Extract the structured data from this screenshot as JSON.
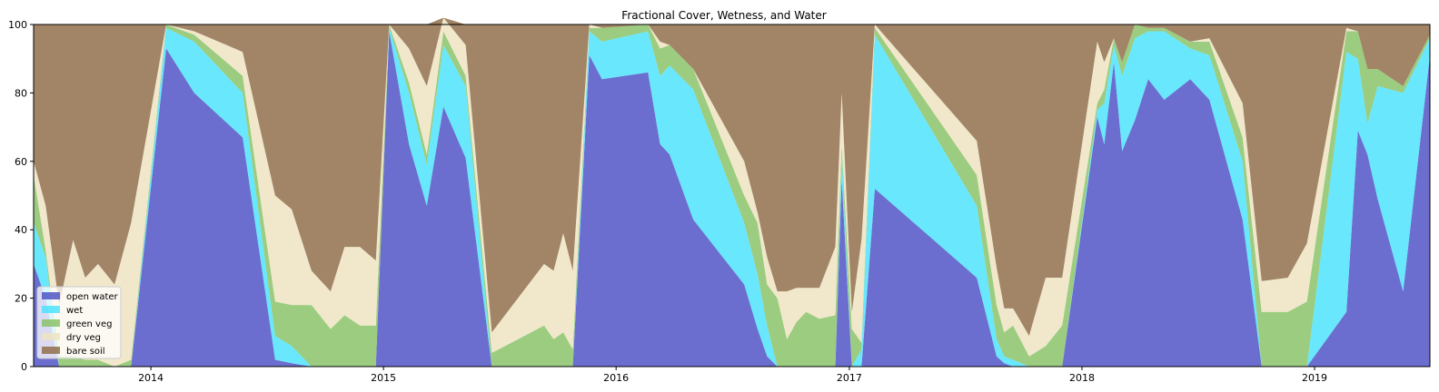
{
  "chart_data": {
    "type": "area",
    "stacked": true,
    "title": "Fractional Cover, Wetness, and Water",
    "xlabel": "",
    "ylabel": "",
    "xlim": [
      "2013-07-01",
      "2019-07-01"
    ],
    "ylim": [
      0,
      100
    ],
    "x_ticks": [
      "2014",
      "2015",
      "2016",
      "2017",
      "2018",
      "2019"
    ],
    "x_tick_dates": [
      "2014-01-01",
      "2015-01-01",
      "2016-01-01",
      "2017-01-01",
      "2018-01-01",
      "2019-01-01"
    ],
    "y_ticks": [
      0,
      20,
      40,
      60,
      80,
      100
    ],
    "grid": false,
    "legend_placement": "lower-left",
    "x": [
      "2013-07-01",
      "2013-07-20",
      "2013-08-10",
      "2013-09-01",
      "2013-09-20",
      "2013-10-10",
      "2013-11-05",
      "2013-12-01",
      "2014-01-25",
      "2014-03-10",
      "2014-05-25",
      "2014-07-15",
      "2014-08-10",
      "2014-09-10",
      "2014-10-10",
      "2014-11-01",
      "2014-11-25",
      "2014-12-20",
      "2015-01-10",
      "2015-02-10",
      "2015-03-10",
      "2015-04-05",
      "2015-05-10",
      "2015-06-20",
      "2015-09-10",
      "2015-09-25",
      "2015-10-10",
      "2015-10-25",
      "2015-11-20",
      "2015-12-10",
      "2016-02-20",
      "2016-03-10",
      "2016-03-25",
      "2016-05-01",
      "2016-07-20",
      "2016-08-10",
      "2016-08-25",
      "2016-09-10",
      "2016-09-25",
      "2016-10-10",
      "2016-10-25",
      "2016-11-15",
      "2016-12-10",
      "2016-12-20",
      "2017-01-05",
      "2017-01-20",
      "2017-02-10",
      "2017-07-20",
      "2017-08-20",
      "2017-09-01",
      "2017-09-15",
      "2017-10-10",
      "2017-11-05",
      "2017-12-01",
      "2018-01-25",
      "2018-02-05",
      "2018-02-20",
      "2018-03-05",
      "2018-03-25",
      "2018-04-15",
      "2018-05-10",
      "2018-06-20",
      "2018-07-20",
      "2018-09-10",
      "2018-10-10",
      "2018-11-20",
      "2018-12-20",
      "2019-02-20",
      "2019-03-10",
      "2019-03-25",
      "2019-04-10",
      "2019-05-20",
      "2019-07-01"
    ],
    "series": [
      {
        "name": "open water",
        "color": "#4a4ec4",
        "values": [
          30,
          20,
          0,
          0,
          0,
          0,
          0,
          0,
          93,
          80,
          67,
          2,
          1,
          0,
          0,
          0,
          0,
          0,
          98,
          65,
          47,
          76,
          61,
          0,
          0,
          0,
          0,
          0,
          91,
          84,
          86,
          65,
          62,
          43,
          24,
          11,
          3,
          0,
          0,
          0,
          0,
          0,
          0,
          55,
          0,
          0,
          52,
          26,
          3,
          1,
          0,
          0,
          0,
          0,
          73,
          65,
          89,
          63,
          72,
          84,
          78,
          84,
          78,
          43,
          0,
          0,
          0,
          16,
          69,
          62,
          49,
          22,
          91
        ]
      },
      {
        "name": "wet",
        "color": "#48e2fc",
        "values": [
          12,
          12,
          0,
          0,
          0,
          0,
          0,
          0,
          6,
          15,
          13,
          7,
          5,
          0,
          0,
          0,
          0,
          0,
          1,
          15,
          12,
          18,
          21,
          0,
          0,
          0,
          0,
          0,
          7,
          11,
          12,
          20,
          26,
          38,
          18,
          16,
          9,
          0,
          0,
          0,
          0,
          0,
          0,
          7,
          0,
          5,
          45,
          21,
          5,
          2,
          2,
          0,
          0,
          0,
          2,
          12,
          5,
          22,
          24,
          14,
          20,
          9,
          13,
          17,
          0,
          0,
          0,
          76,
          21,
          9,
          33,
          58,
          5
        ]
      },
      {
        "name": "green veg",
        "color": "#86c163",
        "values": [
          14,
          2,
          3,
          3,
          2,
          2,
          0,
          2,
          1,
          2,
          5,
          10,
          12,
          18,
          11,
          15,
          12,
          12,
          1,
          3,
          3,
          4,
          3,
          4,
          12,
          8,
          10,
          5,
          1,
          4,
          2,
          8,
          6,
          6,
          8,
          15,
          12,
          20,
          8,
          13,
          16,
          14,
          15,
          3,
          11,
          2,
          2,
          9,
          10,
          7,
          10,
          3,
          6,
          12,
          2,
          4,
          2,
          4,
          4,
          1,
          1,
          2,
          4,
          7,
          16,
          16,
          19,
          6,
          8,
          16,
          5,
          2,
          1
        ]
      },
      {
        "name": "dry veg",
        "color": "#eee3c1",
        "values": [
          4,
          13,
          15,
          34,
          24,
          28,
          24,
          40,
          0,
          1,
          7,
          31,
          28,
          10,
          11,
          20,
          23,
          19,
          0,
          10,
          20,
          4,
          9,
          6,
          18,
          20,
          29,
          23,
          1,
          0,
          0,
          2,
          0,
          0,
          10,
          3,
          8,
          2,
          14,
          10,
          7,
          9,
          20,
          15,
          5,
          30,
          1,
          10,
          11,
          7,
          5,
          6,
          20,
          14,
          18,
          8,
          0,
          0,
          0,
          0,
          0,
          0,
          1,
          10,
          9,
          10,
          17,
          1,
          0,
          0,
          0,
          0,
          0
        ]
      },
      {
        "name": "bare soil",
        "color": "#8d6a46",
        "values": [
          40,
          53,
          82,
          63,
          74,
          70,
          76,
          58,
          0,
          2,
          8,
          50,
          54,
          72,
          78,
          65,
          65,
          69,
          0,
          7,
          18,
          0,
          6,
          90,
          70,
          72,
          61,
          72,
          0,
          1,
          0,
          5,
          6,
          13,
          40,
          55,
          68,
          78,
          78,
          77,
          77,
          77,
          65,
          20,
          84,
          63,
          0,
          34,
          71,
          83,
          83,
          91,
          74,
          74,
          5,
          11,
          4,
          11,
          0,
          1,
          1,
          5,
          4,
          23,
          75,
          74,
          64,
          1,
          2,
          13,
          13,
          18,
          3
        ]
      }
    ]
  }
}
